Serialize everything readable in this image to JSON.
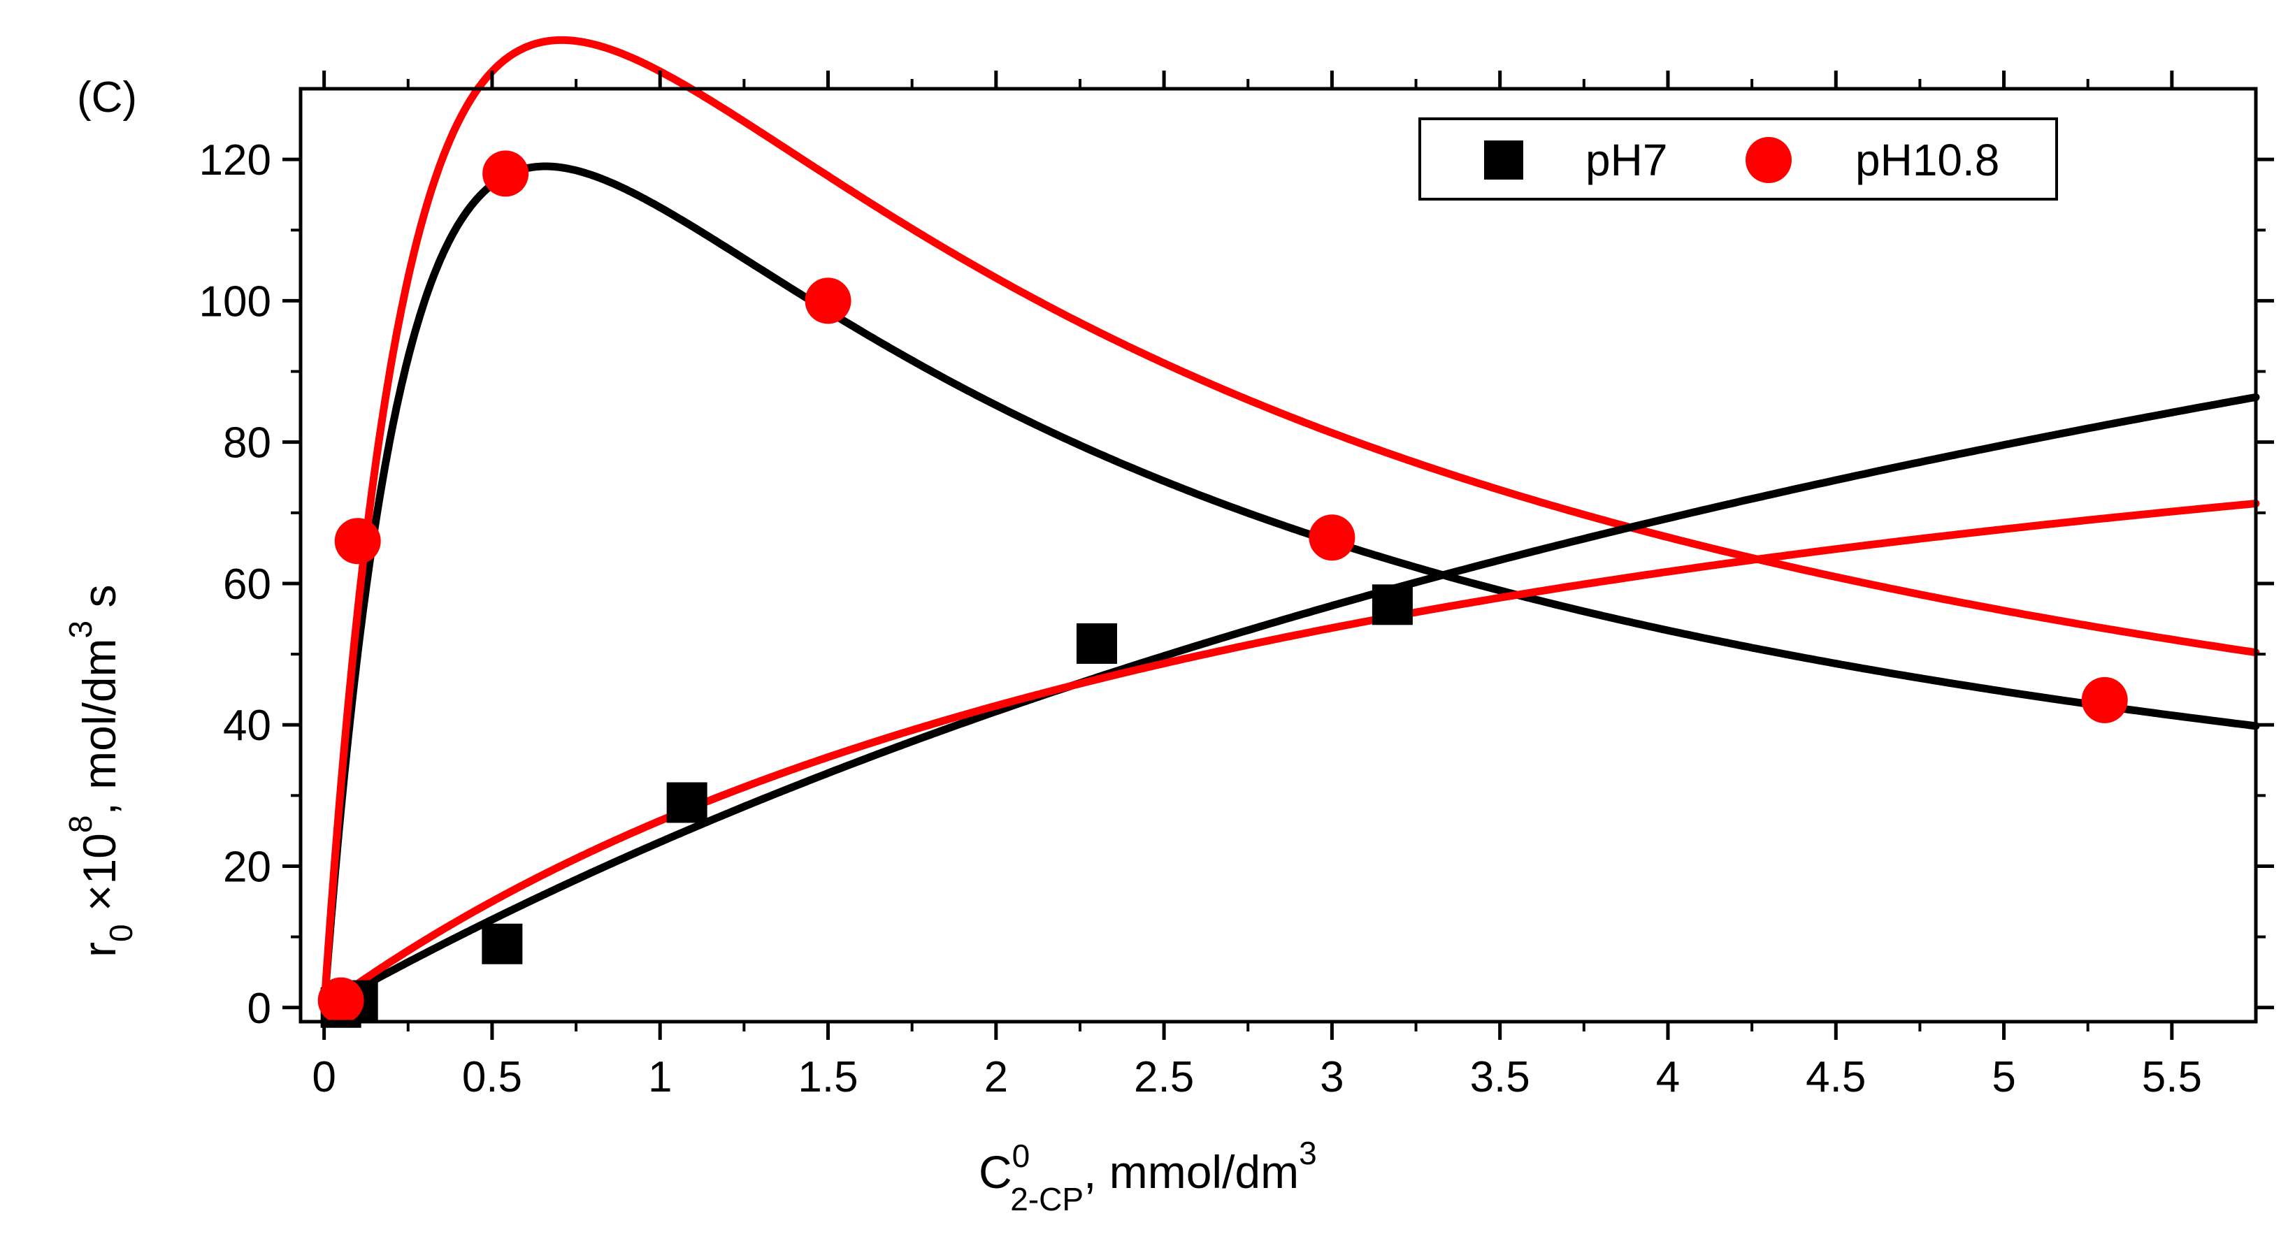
{
  "chart_data": {
    "type": "scatter",
    "panel_label": "(C)",
    "xlim": [
      -0.07,
      5.75
    ],
    "ylim": [
      -2,
      130
    ],
    "x_ticks": [
      0,
      0.5,
      1,
      1.5,
      2,
      2.5,
      3,
      3.5,
      4,
      4.5,
      5,
      5.5
    ],
    "x_tick_labels": [
      "0",
      "0.5",
      "1",
      "1.5",
      "2",
      "2.5",
      "3",
      "3.5",
      "4",
      "4.5",
      "5",
      "5.5"
    ],
    "y_ticks": [
      0,
      20,
      40,
      60,
      80,
      100,
      120
    ],
    "y_tick_labels": [
      "0",
      "20",
      "40",
      "60",
      "80",
      "100",
      "120"
    ],
    "xlabel": {
      "main": "C",
      "sup": "0",
      "sub": "2-CP",
      "rest": ", mmol/dm",
      "sup2": "3"
    },
    "ylabel": {
      "main": "r",
      "sub": "0",
      "mid": " ×10",
      "sup": "8",
      "rest": ", mol/dm",
      "sup2": "3",
      "end": " s"
    },
    "legend": {
      "position": "top-right",
      "entries": [
        "pH7",
        "pH10.8"
      ]
    },
    "series": [
      {
        "name": "pH7",
        "color": "#000000",
        "marker": "square",
        "points": [
          [
            0.05,
            0
          ],
          [
            0.1,
            1
          ],
          [
            0.53,
            9
          ],
          [
            1.08,
            29
          ],
          [
            2.3,
            51.5
          ],
          [
            3.18,
            57
          ]
        ]
      },
      {
        "name": "pH10.8",
        "color": "#ff0000",
        "marker": "circle",
        "points": [
          [
            0.05,
            1
          ],
          [
            0.1,
            66
          ],
          [
            0.54,
            118
          ],
          [
            1.5,
            100
          ],
          [
            3.0,
            66.5
          ],
          [
            5.3,
            43.5
          ]
        ]
      }
    ],
    "fit_curves": [
      {
        "series": "pH7",
        "model": "haldane",
        "color": "#000000",
        "params": {
          "a": 622,
          "b": 2.19,
          "c": 0.434
        }
      },
      {
        "series": "pH10.8",
        "model": "haldane",
        "color": "#ff0000",
        "params": {
          "a": 702,
          "b": 2.3,
          "c": 0.5
        }
      },
      {
        "series": "pH7",
        "model": "monod",
        "color": "#000000",
        "params": {
          "a": 199,
          "b": 7.5
        }
      },
      {
        "series": "pH10.8",
        "model": "monod",
        "color": "#ff0000",
        "params": {
          "a": 111,
          "b": 3.2
        }
      }
    ]
  }
}
